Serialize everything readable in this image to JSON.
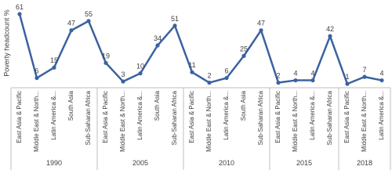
{
  "chart_data": {
    "type": "line",
    "y_label": "Poverty headcount %",
    "color": "#3a62a0",
    "ylim": [
      0,
      65
    ],
    "groups": [
      {
        "name": "1990",
        "categories": [
          "East Asia & Pacific",
          "Middle East & North...",
          "Latin America &...",
          "South Asia",
          "Sub-Saharan Africa"
        ],
        "values": [
          61,
          6,
          15,
          47,
          55
        ]
      },
      {
        "name": "2005",
        "categories": [
          "East Asia & Pacific",
          "Middle East & North...",
          "Latin America &...",
          "South Asia",
          "Sub-Saharan Africa"
        ],
        "values": [
          19,
          3,
          10,
          34,
          51
        ]
      },
      {
        "name": "2010",
        "categories": [
          "East Asia & Pacific",
          "Middle East & North...",
          "Latin America &...",
          "South Asia",
          "Sub-Saharan Africa"
        ],
        "values": [
          11,
          2,
          6,
          25,
          47
        ]
      },
      {
        "name": "2015",
        "categories": [
          "East Asia & Pacific",
          "Middle East & North...",
          "Latin America &...",
          "Sub-Saharan Africa"
        ],
        "values": [
          2,
          4,
          4,
          42
        ]
      },
      {
        "name": "2018",
        "categories": [
          "East Asia & Pacific",
          "Middle East & North...",
          "Latin America &..."
        ],
        "values": [
          1,
          7,
          4
        ]
      }
    ]
  }
}
